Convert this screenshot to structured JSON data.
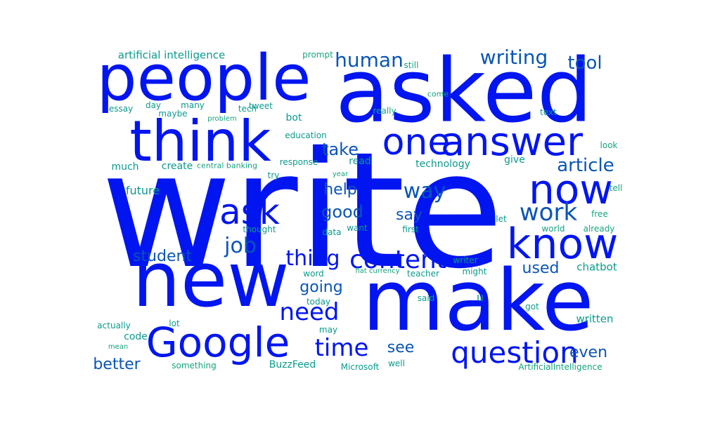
{
  "colors": {
    "big": "#0015f0",
    "mid": "#0a55b5",
    "teal": "#0b9a8e",
    "green": "#17a37f"
  },
  "words": [
    {
      "t": "write",
      "c": "big"
    },
    {
      "t": "asked",
      "c": "big"
    },
    {
      "t": "make",
      "c": "big"
    },
    {
      "t": "new",
      "c": "big"
    },
    {
      "t": "people",
      "c": "big"
    },
    {
      "t": "think",
      "c": "big"
    },
    {
      "t": "know",
      "c": "big"
    },
    {
      "t": "Google",
      "c": "big"
    },
    {
      "t": "now",
      "c": "big"
    },
    {
      "t": "answer",
      "c": "big"
    },
    {
      "t": "one",
      "c": "big"
    },
    {
      "t": "ask",
      "c": "big"
    },
    {
      "t": "question",
      "c": "big"
    },
    {
      "t": "content",
      "c": "big"
    },
    {
      "t": "work",
      "c": "mid"
    },
    {
      "t": "time",
      "c": "big"
    },
    {
      "t": "need",
      "c": "big"
    },
    {
      "t": "thing",
      "c": "big"
    },
    {
      "t": "way",
      "c": "mid"
    },
    {
      "t": "job",
      "c": "mid"
    },
    {
      "t": "human",
      "c": "mid"
    },
    {
      "t": "writing",
      "c": "mid"
    },
    {
      "t": "tool",
      "c": "mid"
    },
    {
      "t": "article",
      "c": "mid"
    },
    {
      "t": "take",
      "c": "mid"
    },
    {
      "t": "good",
      "c": "mid"
    },
    {
      "t": "help",
      "c": "mid"
    },
    {
      "t": "say",
      "c": "mid"
    },
    {
      "t": "going",
      "c": "mid"
    },
    {
      "t": "student",
      "c": "mid"
    },
    {
      "t": "used",
      "c": "mid"
    },
    {
      "t": "better",
      "c": "mid"
    },
    {
      "t": "see",
      "c": "mid"
    },
    {
      "t": "even",
      "c": "mid"
    },
    {
      "t": "artificial intelligence",
      "c": "teal"
    },
    {
      "t": "prompt",
      "c": "green"
    },
    {
      "t": "still",
      "c": "green"
    },
    {
      "t": "come",
      "c": "green"
    },
    {
      "t": "essay",
      "c": "teal"
    },
    {
      "t": "day",
      "c": "teal"
    },
    {
      "t": "many",
      "c": "teal"
    },
    {
      "t": "maybe",
      "c": "teal"
    },
    {
      "t": "tweet",
      "c": "teal"
    },
    {
      "t": "tech",
      "c": "teal"
    },
    {
      "t": "problem",
      "c": "green"
    },
    {
      "t": "really",
      "c": "green"
    },
    {
      "t": "text",
      "c": "teal"
    },
    {
      "t": "bot",
      "c": "teal"
    },
    {
      "t": "education",
      "c": "teal"
    },
    {
      "t": "look",
      "c": "green"
    },
    {
      "t": "much",
      "c": "teal"
    },
    {
      "t": "create",
      "c": "teal"
    },
    {
      "t": "central banking",
      "c": "green"
    },
    {
      "t": "response",
      "c": "teal"
    },
    {
      "t": "read",
      "c": "teal"
    },
    {
      "t": "technology",
      "c": "teal"
    },
    {
      "t": "give",
      "c": "teal"
    },
    {
      "t": "try",
      "c": "teal"
    },
    {
      "t": "year",
      "c": "green"
    },
    {
      "t": "tell",
      "c": "green"
    },
    {
      "t": "future",
      "c": "teal"
    },
    {
      "t": "free",
      "c": "green"
    },
    {
      "t": "let",
      "c": "teal"
    },
    {
      "t": "thought",
      "c": "teal"
    },
    {
      "t": "data",
      "c": "teal"
    },
    {
      "t": "want",
      "c": "teal"
    },
    {
      "t": "first",
      "c": "teal"
    },
    {
      "t": "world",
      "c": "green"
    },
    {
      "t": "already",
      "c": "green"
    },
    {
      "t": "writer",
      "c": "teal"
    },
    {
      "t": "chatbot",
      "c": "teal"
    },
    {
      "t": "word",
      "c": "teal"
    },
    {
      "t": "fiat currency",
      "c": "green"
    },
    {
      "t": "teacher",
      "c": "teal"
    },
    {
      "t": "might",
      "c": "teal"
    },
    {
      "t": "today",
      "c": "teal"
    },
    {
      "t": "said",
      "c": "teal"
    },
    {
      "t": "u",
      "c": "teal"
    },
    {
      "t": "got",
      "c": "teal"
    },
    {
      "t": "actually",
      "c": "teal"
    },
    {
      "t": "lot",
      "c": "teal"
    },
    {
      "t": "written",
      "c": "teal"
    },
    {
      "t": "code",
      "c": "teal"
    },
    {
      "t": "may",
      "c": "teal"
    },
    {
      "t": "mean",
      "c": "green"
    },
    {
      "t": "something",
      "c": "green"
    },
    {
      "t": "BuzzFeed",
      "c": "teal"
    },
    {
      "t": "Microsoft",
      "c": "teal"
    },
    {
      "t": "well",
      "c": "teal"
    },
    {
      "t": "ArtificialIntelligence",
      "c": "green"
    }
  ]
}
